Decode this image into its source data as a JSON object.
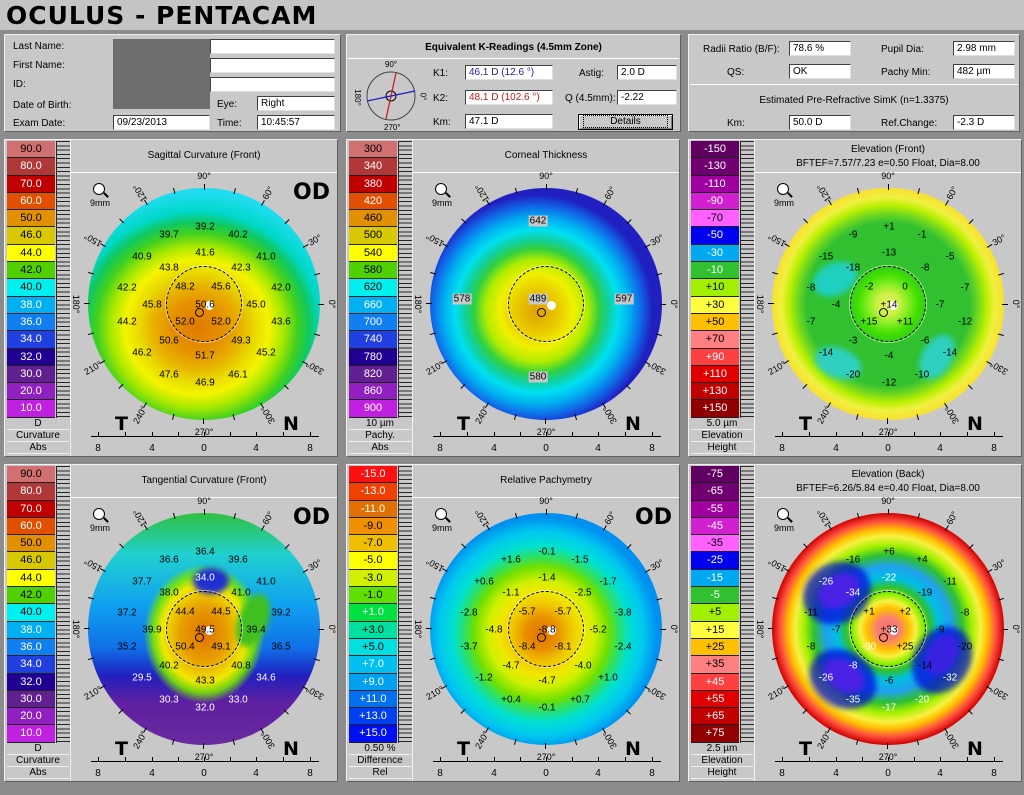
{
  "app_title": "OCULUS  -  PENTACAM",
  "patient": {
    "last_name_label": "Last Name:",
    "last_name": "",
    "first_name_label": "First Name:",
    "first_name": "",
    "id_label": "ID:",
    "id": "",
    "dob_label": "Date of Birth:",
    "eye_label": "Eye:",
    "eye": "Right",
    "exam_date_label": "Exam Date:",
    "exam_date": "09/23/2013",
    "time_label": "Time:",
    "time": "10:45:57"
  },
  "k_readings": {
    "title": "Equivalent K-Readings (4.5mm Zone)",
    "compass_labels": {
      "top": "90°",
      "left": "180°",
      "right": "0°",
      "bottom": "270°"
    },
    "k1_label": "K1:",
    "k1": "46.1 D  (12.6 °)",
    "k1_color": "#2020a0",
    "k2_label": "K2:",
    "k2": "48.1 D  (102.6 °)",
    "k2_color": "#c02020",
    "km_label": "Km:",
    "km": "47.1 D",
    "astig_label": "Astig:",
    "astig": "2.0 D",
    "q_label": "Q (4.5mm):",
    "q": "-2.22",
    "details_button": "Details"
  },
  "summary": {
    "radii_ratio_label": "Radii Ratio (B/F):",
    "radii_ratio": "78.6 %",
    "pupil_dia_label": "Pupil Dia:",
    "pupil_dia": "2.98 mm",
    "qs_label": "QS:",
    "qs": "OK",
    "pachy_min_label": "Pachy Min:",
    "pachy_min": "482 µm",
    "simk_title": "Estimated Pre-Refractive SimK (n=1.3375)",
    "km_label": "Km:",
    "km": "50.0 D",
    "ref_change_label": "Ref.Change:",
    "ref_change": "-2.3 D"
  },
  "map_common": {
    "angle_labels": [
      "90°",
      "60°",
      "30°",
      "0°",
      "330°",
      "300°",
      "270°",
      "240°",
      "210°",
      "180°",
      "150°",
      "120°"
    ],
    "temporal": "T",
    "nasal": "N",
    "zoom_label": "9mm",
    "axis_ticks": [
      "8",
      "4",
      "0",
      "4",
      "8"
    ]
  },
  "maps": [
    {
      "title": "Sagittal Curvature (Front)",
      "subtitle": "",
      "eye": "OD",
      "fill": "f-sag",
      "scale": {
        "values": [
          "90.0",
          "80.0",
          "70.0",
          "60.0",
          "50.0",
          "46.0",
          "44.0",
          "42.0",
          "40.0",
          "38.0",
          "36.0",
          "34.0",
          "32.0",
          "30.0",
          "20.0",
          "10.0"
        ],
        "colors": [
          "#d07070",
          "#b03838",
          "#c00000",
          "#e05000",
          "#e09000",
          "#d8c800",
          "#ffff00",
          "#50d000",
          "#00f0f0",
          "#00b0f0",
          "#1080f0",
          "#2040e0",
          "#200090",
          "#602090",
          "#9020c0",
          "#c020e0"
        ],
        "labels": [
          "D",
          "Curvature",
          "Abs"
        ]
      },
      "values": [
        "39.2",
        "39.7",
        "40.2",
        "41.6",
        "40.9",
        "41.0",
        "43.8",
        "42.3",
        "48.2",
        "45.6",
        "42.2",
        "42.0",
        "45.8",
        "50.6",
        "45.0",
        "44.2",
        "52.0",
        "52.0",
        "43.6",
        "50.6",
        "49.3",
        "46.2",
        "51.7",
        "45.2",
        "47.6",
        "46.1",
        "46.9"
      ]
    },
    {
      "title": "Corneal Thickness",
      "subtitle": "",
      "eye": "",
      "fill": "f-thk",
      "scale": {
        "values": [
          "300",
          "340",
          "380",
          "420",
          "460",
          "500",
          "540",
          "580",
          "620",
          "660",
          "700",
          "740",
          "780",
          "820",
          "860",
          "900"
        ],
        "colors": [
          "#d07070",
          "#b03838",
          "#c00000",
          "#e05000",
          "#e09000",
          "#d8c800",
          "#ffff00",
          "#50d000",
          "#00f0f0",
          "#00b0f0",
          "#1080f0",
          "#2040e0",
          "#200090",
          "#602090",
          "#9020c0",
          "#c020e0"
        ],
        "labels": [
          "10 µm",
          "Pachy.",
          "Abs"
        ]
      },
      "values": [
        "642",
        "578",
        "489",
        "597",
        "580"
      ]
    },
    {
      "title": "Elevation (Front)",
      "subtitle": "BFTEF=7.57/7.23 e=0.50 Float, Dia=8.00",
      "eye": "",
      "fill": "f-elf",
      "scale": {
        "values": [
          "-150",
          "-130",
          "-110",
          "-90",
          "-70",
          "-50",
          "-30",
          "-10",
          "+10",
          "+30",
          "+50",
          "+70",
          "+90",
          "+110",
          "+130",
          "+150"
        ],
        "colors": [
          "#600060",
          "#700070",
          "#a000a0",
          "#d020d0",
          "#ff60ff",
          "#0000f0",
          "#00a8f0",
          "#30c030",
          "#a0f000",
          "#ffff40",
          "#ffc000",
          "#ff8080",
          "#ff4040",
          "#e00000",
          "#c00000",
          "#900000"
        ],
        "labels": [
          "5.0 µm",
          "Elevation",
          "Height"
        ]
      },
      "values": [
        "+1",
        "-9",
        "-1",
        "-13",
        "-15",
        "-5",
        "-18",
        "-8",
        "-2",
        "0",
        "-8",
        "-7",
        "-4",
        "+14",
        "-7",
        "-7",
        "+15",
        "+11",
        "-12",
        "-3",
        "-6",
        "-14",
        "-4",
        "-14",
        "-20",
        "-10",
        "-12"
      ]
    },
    {
      "title": "Tangential Curvature (Front)",
      "subtitle": "",
      "eye": "OD",
      "fill": "f-tan",
      "scale": {
        "values": [
          "90.0",
          "80.0",
          "70.0",
          "60.0",
          "50.0",
          "46.0",
          "44.0",
          "42.0",
          "40.0",
          "38.0",
          "36.0",
          "34.0",
          "32.0",
          "30.0",
          "20.0",
          "10.0"
        ],
        "colors": [
          "#d07070",
          "#b03838",
          "#c00000",
          "#e05000",
          "#e09000",
          "#d8c800",
          "#ffff00",
          "#50d000",
          "#00f0f0",
          "#00b0f0",
          "#1080f0",
          "#2040e0",
          "#200090",
          "#602090",
          "#9020c0",
          "#c020e0"
        ],
        "labels": [
          "D",
          "Curvature",
          "Abs"
        ]
      },
      "values": [
        "36.4",
        "36.6",
        "39.6",
        "34.0",
        "37.7",
        "41.0",
        "38.0",
        "41.0",
        "44.4",
        "44.5",
        "37.2",
        "39.2",
        "39.9",
        "49.5",
        "39.4",
        "35.2",
        "50.4",
        "49.1",
        "36.5",
        "40.2",
        "40.8",
        "29.5",
        "43.3",
        "34.6",
        "30.3",
        "33.0",
        "32.0"
      ]
    },
    {
      "title": "Relative Pachymetry",
      "subtitle": "",
      "eye": "OD",
      "fill": "f-rel",
      "scale": {
        "values": [
          "-15.0",
          "-13.0",
          "-11.0",
          "-9.0",
          "-7.0",
          "-5.0",
          "-3.0",
          "-1.0",
          "+1.0",
          "+3.0",
          "+5.0",
          "+7.0",
          "+9.0",
          "+11.0",
          "+13.0",
          "+15.0"
        ],
        "colors": [
          "#ff1010",
          "#f04000",
          "#e07000",
          "#f09000",
          "#f0c000",
          "#ffff00",
          "#d0f000",
          "#60e000",
          "#00e040",
          "#00e0a0",
          "#00e0e0",
          "#00c0f0",
          "#00a0f0",
          "#0070f0",
          "#0040f0",
          "#0010f0"
        ],
        "labels": [
          "0.50 %",
          "Difference",
          "Rel"
        ]
      },
      "values": [
        "-0.1",
        "+1.6",
        "-1.5",
        "-1.4",
        "+0.6",
        "-1.7",
        "-1.1",
        "-2.5",
        "-5.7",
        "-5.7",
        "-2.8",
        "-3.8",
        "-4.8",
        "-8.8",
        "-5.2",
        "-3.7",
        "-8.4",
        "-8.1",
        "-2.4",
        "-4.7",
        "-4.0",
        "-1.2",
        "-4.7",
        "+1.0",
        "+0.4",
        "+0.7",
        "-0.1"
      ]
    },
    {
      "title": "Elevation (Back)",
      "subtitle": "BFTEF=6.26/5.84 e=0.40 Float, Dia=8.00",
      "eye": "",
      "fill": "f-elb",
      "scale": {
        "values": [
          "-75",
          "-65",
          "-55",
          "-45",
          "-35",
          "-25",
          "-15",
          "-5",
          "+5",
          "+15",
          "+25",
          "+35",
          "+45",
          "+55",
          "+65",
          "+75"
        ],
        "colors": [
          "#600060",
          "#700070",
          "#a000a0",
          "#d020d0",
          "#ff60ff",
          "#0000f0",
          "#00a8f0",
          "#30c030",
          "#a0f000",
          "#ffff40",
          "#ffc000",
          "#ff8080",
          "#ff4040",
          "#e00000",
          "#c00000",
          "#900000"
        ],
        "labels": [
          "2.5 µm",
          "Elevation",
          "Height"
        ]
      },
      "values": [
        "+6",
        "-16",
        "+4",
        "-22",
        "-26",
        "-11",
        "-34",
        "-19",
        "+1",
        "+2",
        "-11",
        "-8",
        "-7",
        "+33",
        "-9",
        "-8",
        "-30",
        "+25",
        "-20",
        "-8",
        "-14",
        "-26",
        "-6",
        "-32",
        "-35",
        "-20",
        "-17"
      ]
    }
  ]
}
